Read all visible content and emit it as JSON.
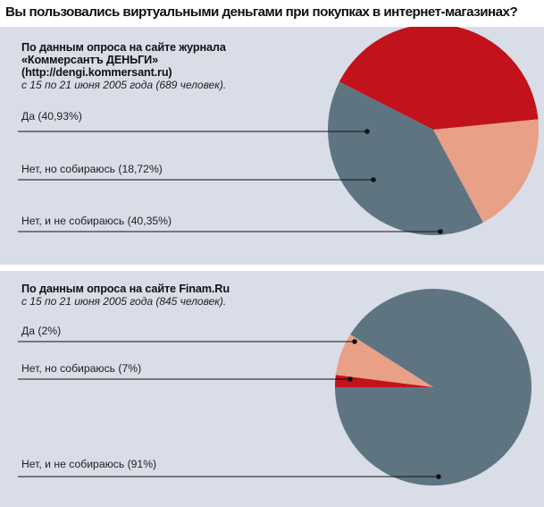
{
  "title": "Вы пользовались виртуальными деньгами при покупках в интернет-магазинах?",
  "panels": [
    {
      "source_line_1": "По данным опроса на сайте журнала",
      "source_line_2": "«Коммерсантъ ДЕНЬГИ»",
      "source_line_3": "(http://dengi.kommersant.ru)",
      "source_line_4": "с 15 по 21 июня 2005 года (689 человек)."
    },
    {
      "source_line_1": "По данным опроса на сайте Finam.Ru",
      "source_line_2": "с 15 по 21 июня 2005 года (845 человек)."
    }
  ],
  "chart_data": [
    {
      "type": "pie",
      "categories": [
        "Да",
        "Нет, но собираюсь",
        "Нет, и не собираюсь"
      ],
      "values": [
        40.93,
        18.72,
        40.35
      ],
      "labels": [
        "Да (40,93%)",
        "Нет, но собираюсь (18,72%)",
        "Нет, и не собираюсь (40,35%)"
      ],
      "colors": [
        "#c2121b",
        "#e8a087",
        "#5e7581"
      ]
    },
    {
      "type": "pie",
      "categories": [
        "Да",
        "Нет, но собираюсь",
        "Нет, и не собираюсь"
      ],
      "values": [
        2,
        7,
        91
      ],
      "labels": [
        "Да (2%)",
        "Нет, но собираюсь (7%)",
        "Нет, и не собираюсь (91%)"
      ],
      "colors": [
        "#c2121b",
        "#e8a087",
        "#5e7581"
      ]
    }
  ]
}
